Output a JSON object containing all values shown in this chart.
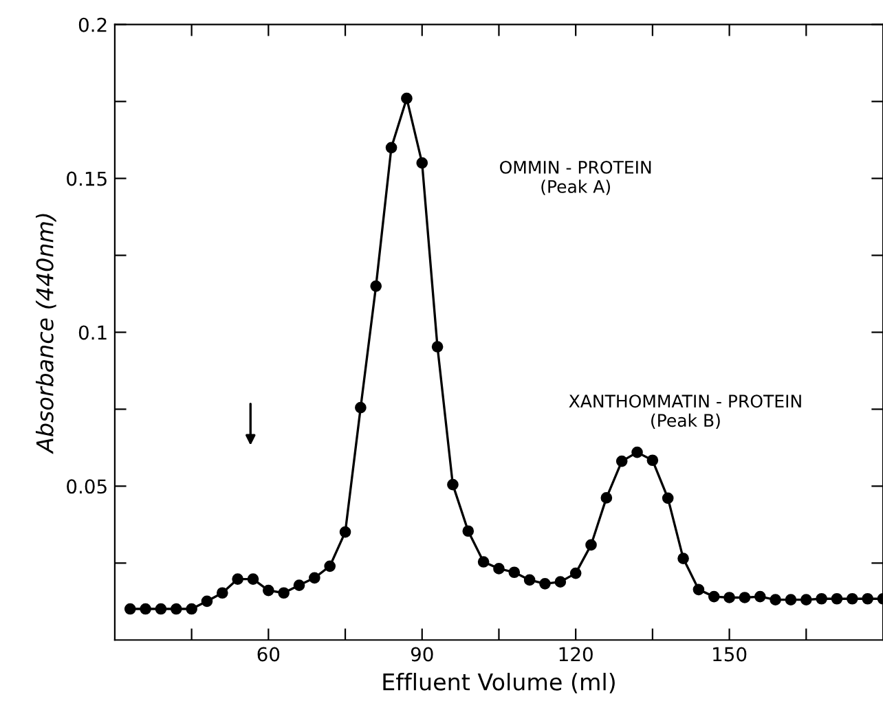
{
  "chart_data": {
    "type": "line",
    "xlabel": "Effluent Volume (ml)",
    "ylabel": "Absorbance (440nm)",
    "x": [
      33,
      36,
      39,
      42,
      45,
      48,
      51,
      54,
      57,
      60,
      63,
      66,
      69,
      72,
      75,
      78,
      81,
      84,
      87,
      90,
      93,
      96,
      99,
      102,
      105,
      108,
      111,
      114,
      117,
      120,
      123,
      126,
      129,
      132,
      135,
      138,
      141,
      144,
      147,
      150,
      153,
      156,
      159,
      162,
      165,
      168,
      171,
      174,
      177,
      180
    ],
    "series": [
      {
        "color": "#000000",
        "values": [
          0.0101,
          0.0101,
          0.0101,
          0.0101,
          0.0101,
          0.0126,
          0.0153,
          0.0198,
          0.0198,
          0.0161,
          0.0153,
          0.0178,
          0.0202,
          0.024,
          0.0351,
          0.0755,
          0.115,
          0.16,
          0.176,
          0.155,
          0.0953,
          0.0505,
          0.0354,
          0.0254,
          0.0232,
          0.022,
          0.0195,
          0.0183,
          0.0189,
          0.0217,
          0.0309,
          0.0462,
          0.0581,
          0.061,
          0.0584,
          0.0461,
          0.0265,
          0.0164,
          0.0141,
          0.0138,
          0.0138,
          0.0141,
          0.0131,
          0.0131,
          0.0131,
          0.0134,
          0.0134,
          0.0134,
          0.0134,
          0.0134
        ]
      }
    ],
    "marker": "circle",
    "line_style": "solid",
    "grid": false,
    "legend": false,
    "xlim": [
      30,
      180
    ],
    "ylim": [
      0,
      0.2
    ],
    "xticks": [
      {
        "value": 45,
        "label": null
      },
      60,
      {
        "value": 75,
        "label": null
      },
      90,
      {
        "value": 105,
        "label": null
      },
      120,
      {
        "value": 135,
        "label": null
      },
      150,
      {
        "value": 165,
        "label": null
      }
    ],
    "yticks": [
      {
        "value": 0.025,
        "label": null
      },
      0.05,
      {
        "value": 0.075,
        "label": null
      },
      0.1,
      {
        "value": 0.125,
        "label": null
      },
      0.15,
      {
        "value": 0.175,
        "label": null
      },
      0.2
    ],
    "annotations": [
      "OMMIN - PROTEIN\n(Peak A)",
      "XANTHOMMATIN - PROTEIN\n(Peak B)"
    ]
  }
}
